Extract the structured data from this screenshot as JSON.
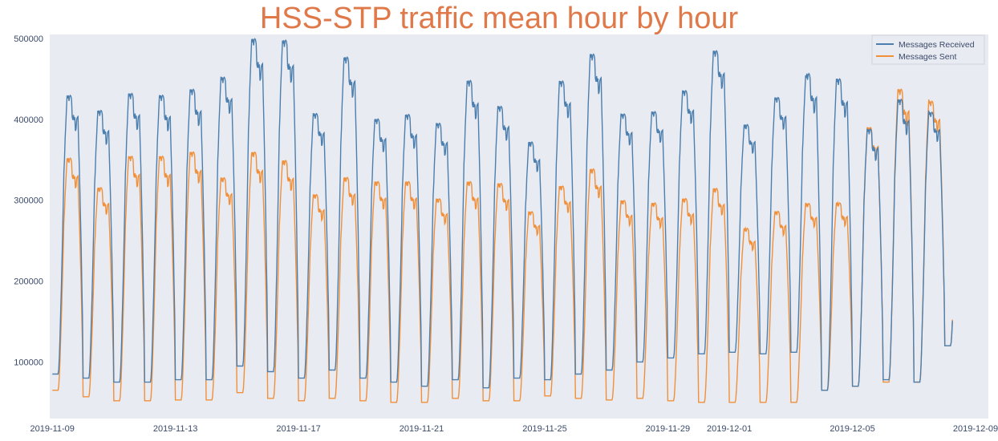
{
  "chart_data": {
    "type": "line",
    "title": "HSS-STP traffic mean hour by hour",
    "xlabel": "",
    "ylabel": "",
    "x_start": "2019-11-09",
    "x_end": "2019-12-08",
    "ylim": [
      30000,
      505000
    ],
    "grid": false,
    "legend_position": "top-right",
    "background_color": "#e9ebf2",
    "x_tick_labels": [
      "2019-11-09",
      "2019-11-13",
      "2019-11-17",
      "2019-11-21",
      "2019-11-25",
      "2019-11-29",
      "2019-12-01",
      "2019-12-05",
      "2019-12-09"
    ],
    "x_tick_dates": [
      "2019-11-09",
      "2019-11-13",
      "2019-11-17",
      "2019-11-21",
      "2019-11-25",
      "2019-11-29",
      "2019-12-01",
      "2019-12-05",
      "2019-12-09"
    ],
    "y_tick_labels": [
      "100000",
      "200000",
      "300000",
      "400000",
      "500000"
    ],
    "y_tick_values": [
      100000,
      200000,
      300000,
      400000,
      500000
    ],
    "series": [
      {
        "name": "Messages Received",
        "color": "#4c7fae",
        "daily_peak": [
          413000,
          395000,
          415000,
          413000,
          420000,
          435000,
          480000,
          478000,
          392000,
          458000,
          385000,
          390000,
          380000,
          430000,
          400000,
          358000,
          430000,
          462000,
          392000,
          395000,
          420000,
          467000,
          380000,
          412000,
          438000,
          432000,
          373000,
          408000,
          395000,
          340000
        ],
        "daily_min": [
          85000,
          80000,
          75000,
          75000,
          78000,
          78000,
          95000,
          88000,
          80000,
          90000,
          80000,
          75000,
          70000,
          78000,
          68000,
          80000,
          78000,
          85000,
          90000,
          100000,
          105000,
          110000,
          112000,
          110000,
          112000,
          65000,
          70000,
          78000,
          75000,
          120000
        ]
      },
      {
        "name": "Messages Sent",
        "color": "#f0903a",
        "daily_peak": [
          338000,
          303000,
          340000,
          340000,
          345000,
          315000,
          345000,
          335000,
          295000,
          315000,
          310000,
          310000,
          290000,
          310000,
          308000,
          275000,
          305000,
          325000,
          288000,
          285000,
          290000,
          302000,
          255000,
          275000,
          285000,
          286000,
          375000,
          420000,
          408000,
          352000
        ],
        "daily_min": [
          65000,
          57000,
          52000,
          52000,
          53000,
          53000,
          62000,
          55000,
          52000,
          55000,
          52000,
          50000,
          50000,
          55000,
          52000,
          52000,
          58000,
          55000,
          53000,
          55000,
          52000,
          50000,
          50000,
          50000,
          50000,
          65000,
          70000,
          75000,
          75000,
          120000
        ]
      }
    ]
  }
}
